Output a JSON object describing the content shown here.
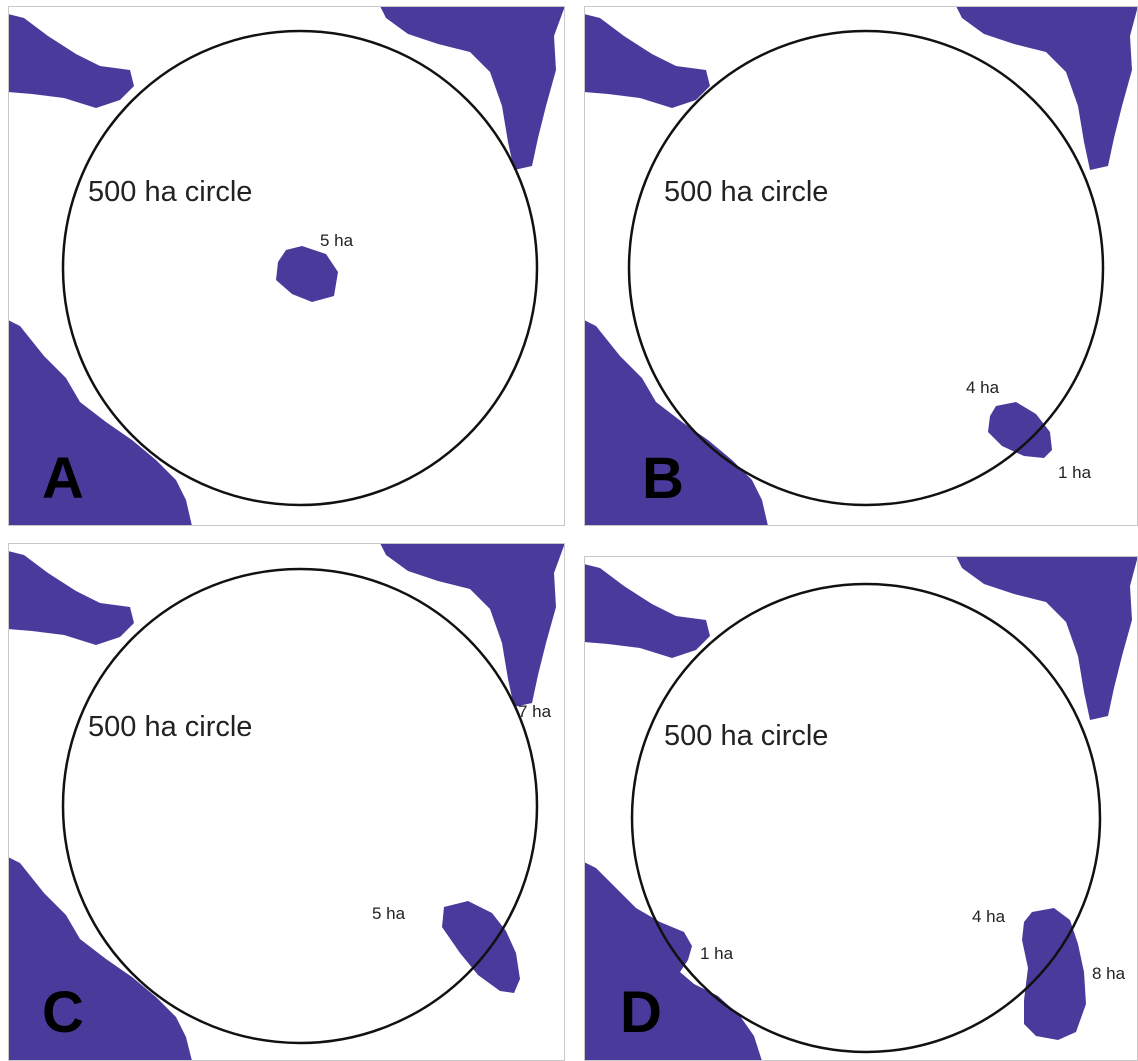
{
  "colors": {
    "habitat": "#4a3a9c",
    "circle_stroke": "#111111",
    "frame": "#c8c8c8",
    "text": "#222222"
  },
  "circle_label": "500 ha circle",
  "panels": [
    {
      "letter": "A",
      "area_labels": [
        "5 ha"
      ]
    },
    {
      "letter": "B",
      "area_labels": [
        "4 ha",
        "1 ha"
      ]
    },
    {
      "letter": "C",
      "area_labels": [
        "5 ha",
        "7 ha"
      ]
    },
    {
      "letter": "D",
      "area_labels": [
        "4 ha",
        "8 ha",
        "1 ha"
      ]
    }
  ]
}
